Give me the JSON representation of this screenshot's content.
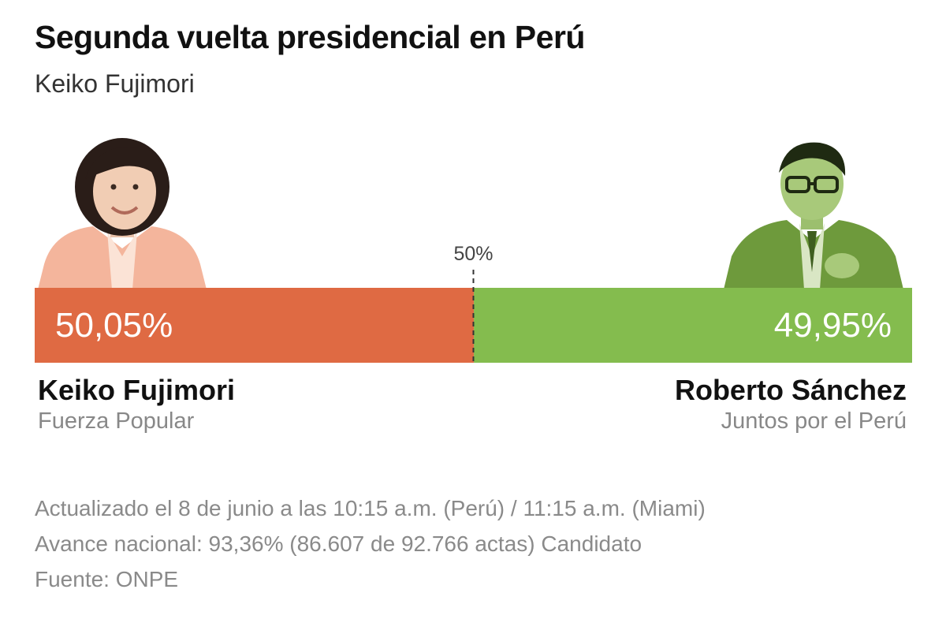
{
  "header": {
    "title": "Segunda vuelta presidencial en Perú",
    "subtitle": "Keiko Fujimori"
  },
  "chart_data": {
    "type": "bar",
    "orientation": "horizontal-stacked",
    "midpoint_label": "50%",
    "midpoint_value": 50,
    "xlim": [
      0,
      100
    ],
    "series": [
      {
        "name": "Keiko Fujimori",
        "party": "Fuerza Popular",
        "value": 50.05,
        "label": "50,05%",
        "color": "#DF6A43"
      },
      {
        "name": "Roberto Sánchez",
        "party": "Juntos por el Perú",
        "value": 49.95,
        "label": "49,95%",
        "color": "#84BC4E"
      }
    ]
  },
  "candidates": {
    "left": {
      "name": "Keiko Fujimori",
      "party": "Fuerza Popular",
      "photo": "candidate-portrait"
    },
    "right": {
      "name": "Roberto Sánchez",
      "party": "Juntos por el Perú",
      "photo": "candidate-portrait"
    }
  },
  "footer": {
    "updated": "Actualizado el 8 de junio a las 10:15 a.m. (Perú) / 11:15 a.m. (Miami)",
    "progress": "Avance nacional: 93,36% (86.607 de 92.766 actas) Candidato",
    "source": "Fuente: ONPE"
  }
}
